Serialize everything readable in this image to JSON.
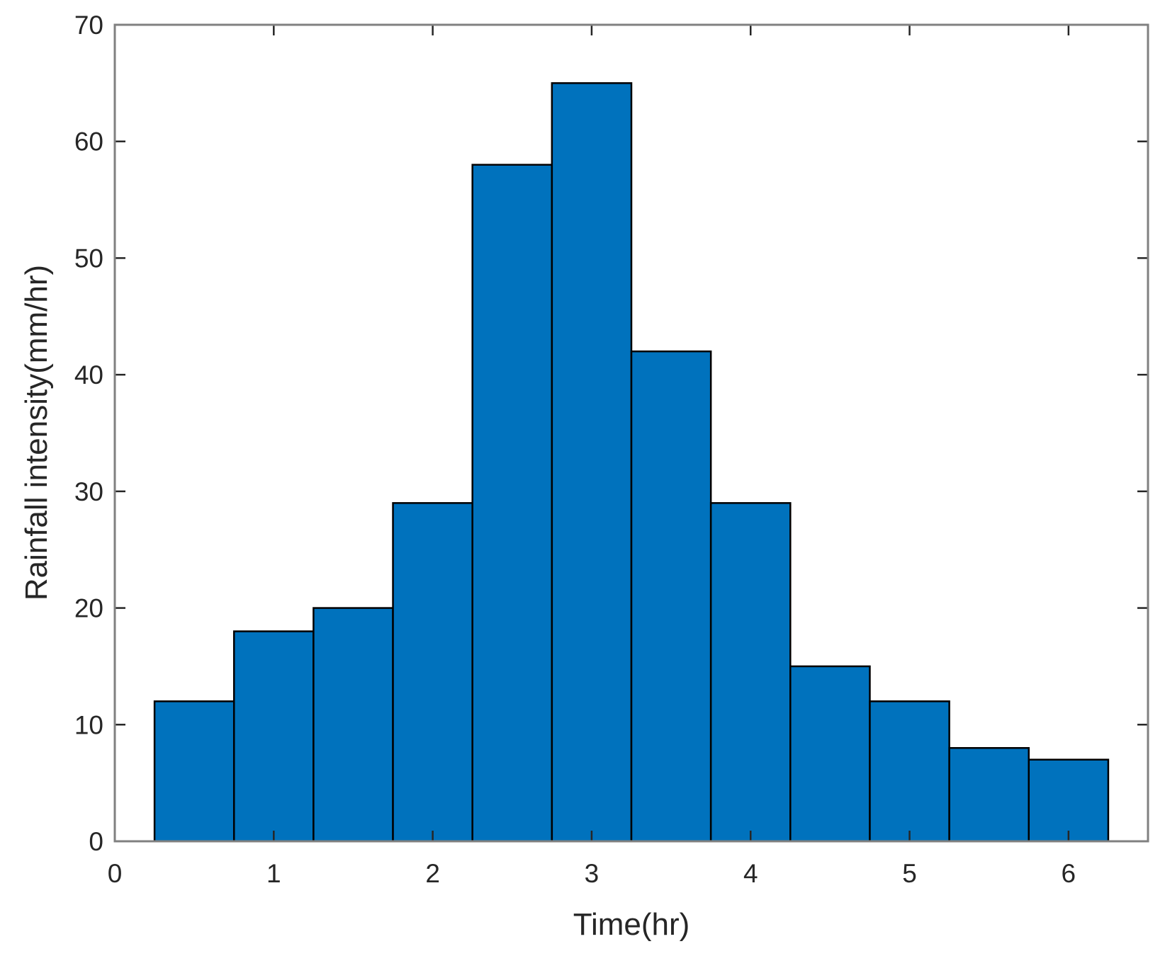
{
  "chart_data": {
    "type": "bar",
    "title": "",
    "xlabel": "Time(hr)",
    "ylabel": "Rainfall intensity(mm/hr)",
    "x": [
      0.5,
      1.0,
      1.5,
      2.0,
      2.5,
      3.0,
      3.5,
      4.0,
      4.5,
      5.0,
      5.5,
      6.0
    ],
    "values": [
      12,
      18,
      20,
      29,
      58,
      65,
      42,
      29,
      15,
      12,
      8,
      7
    ],
    "bar_width": 0.5,
    "xlim": [
      0,
      6.5
    ],
    "ylim": [
      0,
      70
    ],
    "xticks": [
      0,
      1,
      2,
      3,
      4,
      5,
      6
    ],
    "yticks": [
      0,
      10,
      20,
      30,
      40,
      50,
      60,
      70
    ],
    "xtick_labels": [
      "0",
      "1",
      "2",
      "3",
      "4",
      "5",
      "6"
    ],
    "ytick_labels": [
      "0",
      "10",
      "20",
      "30",
      "40",
      "50",
      "60",
      "70"
    ],
    "grid": false,
    "legend": false,
    "colors": {
      "bar_fill": "#0072BD",
      "bar_edge": "#000000",
      "axis": "#262626",
      "box": "#808080",
      "background": "#ffffff"
    }
  }
}
